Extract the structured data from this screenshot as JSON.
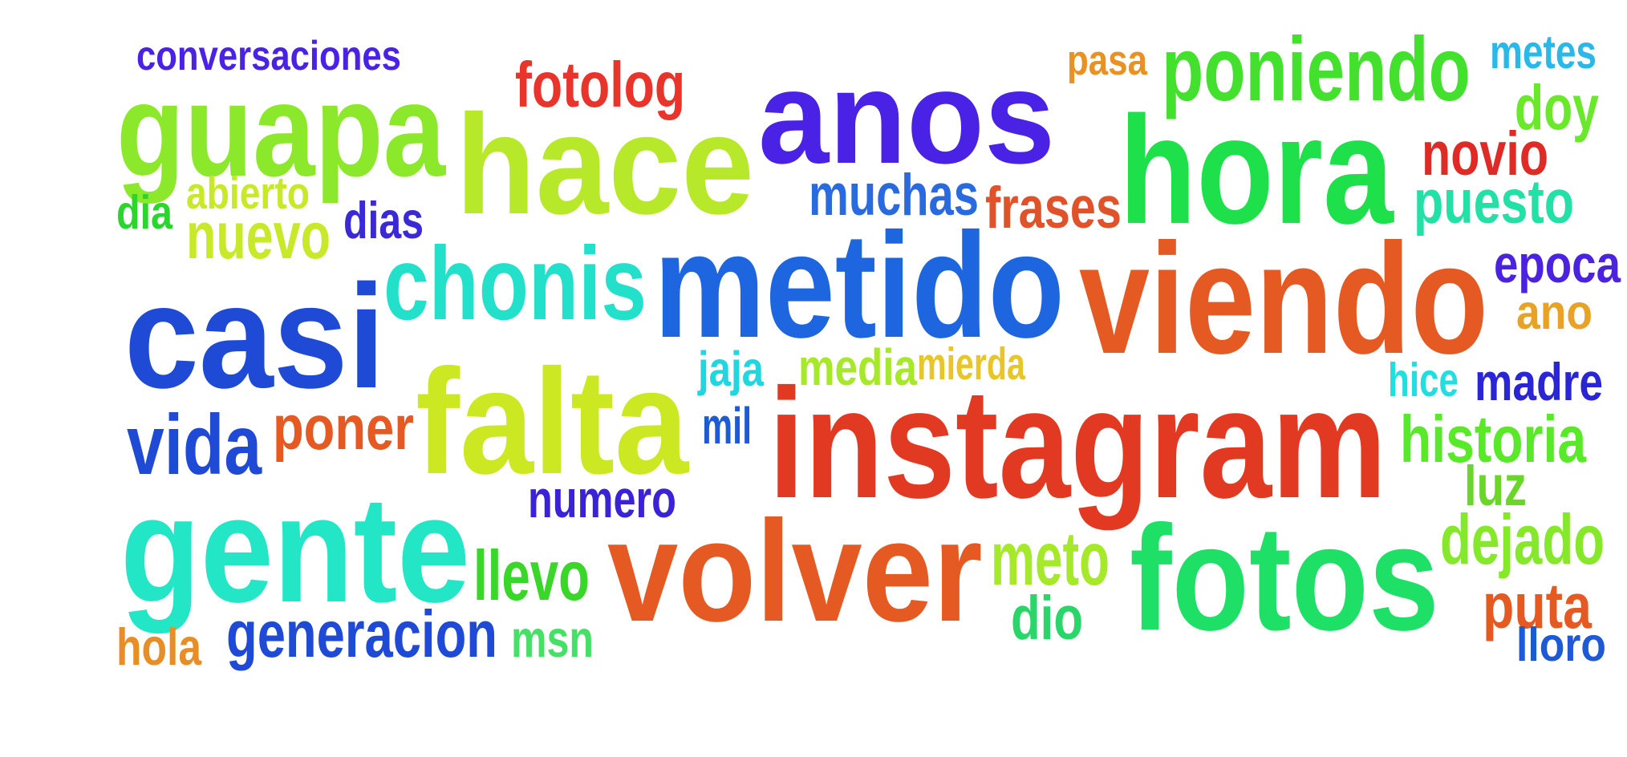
{
  "words": [
    {
      "id": "conversaciones",
      "text": "conversaciones",
      "color": "#4a22e6"
    },
    {
      "id": "guapa",
      "text": "guapa",
      "color": "#8ce82a"
    },
    {
      "id": "fotolog",
      "text": "fotolog",
      "color": "#e8342a"
    },
    {
      "id": "hace",
      "text": "hace",
      "color": "#b8e82a"
    },
    {
      "id": "anos",
      "text": "anos",
      "color": "#4a22e6"
    },
    {
      "id": "pasa",
      "text": "pasa",
      "color": "#e89226"
    },
    {
      "id": "poniendo",
      "text": "poniendo",
      "color": "#44e02e"
    },
    {
      "id": "metes",
      "text": "metes",
      "color": "#2ab8e8"
    },
    {
      "id": "doy",
      "text": "doy",
      "color": "#6ae82a"
    },
    {
      "id": "hora",
      "text": "hora",
      "color": "#1ee04a"
    },
    {
      "id": "novio",
      "text": "novio",
      "color": "#e02a26"
    },
    {
      "id": "puesto",
      "text": "puesto",
      "color": "#22e0a6"
    },
    {
      "id": "dia",
      "text": "dia",
      "color": "#2ad62e"
    },
    {
      "id": "abierto",
      "text": "abierto",
      "color": "#c8e82a"
    },
    {
      "id": "nuevo",
      "text": "nuevo",
      "color": "#c8e82a"
    },
    {
      "id": "dias",
      "text": "dias",
      "color": "#3a2ad6"
    },
    {
      "id": "muchas",
      "text": "muchas",
      "color": "#2a6ae0"
    },
    {
      "id": "frases",
      "text": "frases",
      "color": "#e0522a"
    },
    {
      "id": "chonis",
      "text": "chonis",
      "color": "#22e0ca"
    },
    {
      "id": "metido",
      "text": "metido",
      "color": "#1e66e0"
    },
    {
      "id": "viendo",
      "text": "viendo",
      "color": "#e45a22"
    },
    {
      "id": "epoca",
      "text": "epoca",
      "color": "#4a22e0"
    },
    {
      "id": "ano",
      "text": "ano",
      "color": "#e8a226"
    },
    {
      "id": "casi",
      "text": "casi",
      "color": "#1e4ad6"
    },
    {
      "id": "falta",
      "text": "falta",
      "color": "#cce822"
    },
    {
      "id": "jaja",
      "text": "jaja",
      "color": "#22d6e0"
    },
    {
      "id": "media",
      "text": "media",
      "color": "#a6e82a"
    },
    {
      "id": "mierda",
      "text": "mierda",
      "color": "#e8c62a"
    },
    {
      "id": "hice",
      "text": "hice",
      "color": "#22dede"
    },
    {
      "id": "madre",
      "text": "madre",
      "color": "#2a26d6"
    },
    {
      "id": "vida",
      "text": "vida",
      "color": "#1e4ad6"
    },
    {
      "id": "poner",
      "text": "poner",
      "color": "#e45a22"
    },
    {
      "id": "mil",
      "text": "mil",
      "color": "#1e5ad6"
    },
    {
      "id": "instagram",
      "text": "instagram",
      "color": "#e23a22"
    },
    {
      "id": "historia",
      "text": "historia",
      "color": "#5ae82a"
    },
    {
      "id": "luz",
      "text": "luz",
      "color": "#6ad62a"
    },
    {
      "id": "numero",
      "text": "numero",
      "color": "#3a22d6"
    },
    {
      "id": "gente",
      "text": "gente",
      "color": "#22e6c6"
    },
    {
      "id": "llevo",
      "text": "llevo",
      "color": "#3ad62a"
    },
    {
      "id": "volver",
      "text": "volver",
      "color": "#e45a22"
    },
    {
      "id": "meto",
      "text": "meto",
      "color": "#a6e82a"
    },
    {
      "id": "fotos",
      "text": "fotos",
      "color": "#1ee066"
    },
    {
      "id": "dejado",
      "text": "dejado",
      "color": "#86e82a"
    },
    {
      "id": "dio",
      "text": "dio",
      "color": "#2ad66a"
    },
    {
      "id": "puta",
      "text": "puta",
      "color": "#e45a22"
    },
    {
      "id": "hola",
      "text": "hola",
      "color": "#e88e26"
    },
    {
      "id": "generacion",
      "text": "generacion",
      "color": "#1e4ad6"
    },
    {
      "id": "msn",
      "text": "msn",
      "color": "#46e066"
    },
    {
      "id": "lloro",
      "text": "lloro",
      "color": "#1e5ad6"
    }
  ]
}
